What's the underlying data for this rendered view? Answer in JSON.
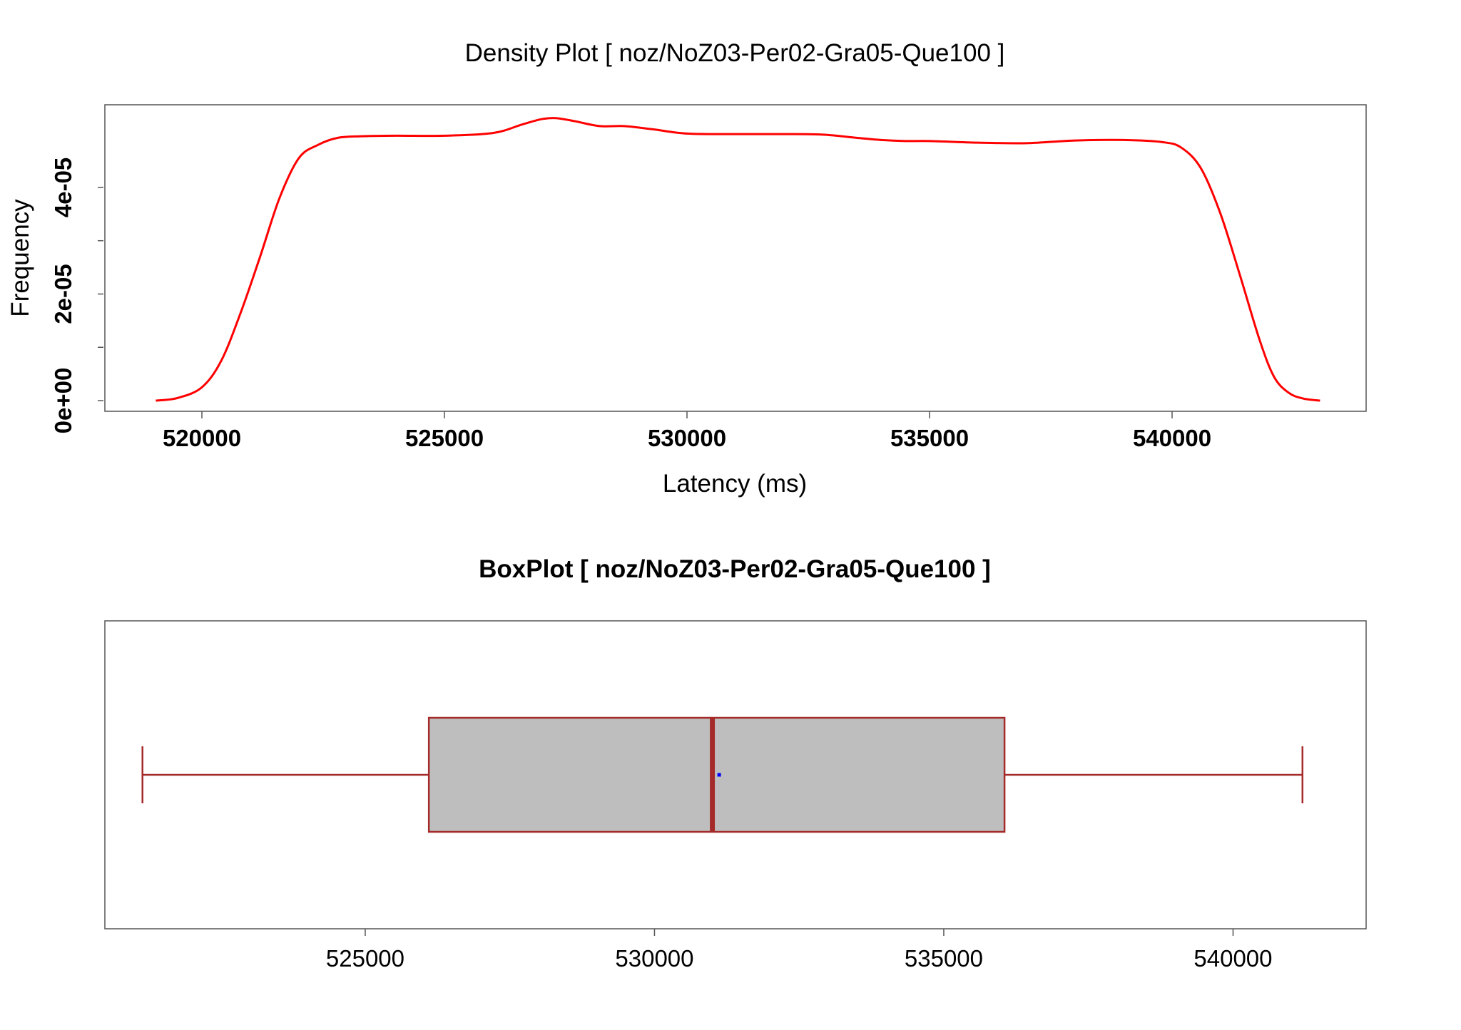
{
  "colors": {
    "density_line": "#ff0000",
    "box_stroke": "#a52a2a",
    "box_fill": "#bebebe",
    "mean_point": "#0000ff",
    "frame": "#555555"
  },
  "chart_data": [
    {
      "type": "line",
      "title": "Density Plot [ noz/NoZ03-Per02-Gra05-Que100 ]",
      "xlabel": "Latency (ms)",
      "ylabel": "Frequency",
      "xlim": [
        518000,
        544000
      ],
      "ylim": [
        -2e-06,
        5.55e-05
      ],
      "x_ticks": [
        520000,
        525000,
        530000,
        535000,
        540000
      ],
      "x_tick_labels": [
        "520000",
        "525000",
        "530000",
        "535000",
        "540000"
      ],
      "y_ticks": [
        0,
        2e-05,
        4e-05
      ],
      "y_tick_labels": [
        "0e+00",
        "2e-05",
        "4e-05"
      ],
      "y_minor_ticks": [
        1e-05,
        3e-05
      ],
      "grid": false,
      "series": [
        {
          "x": [
            519050,
            519500,
            520000,
            520400,
            520800,
            521200,
            521600,
            522000,
            522400,
            522800,
            523300,
            524000,
            525000,
            526000,
            526600,
            527000,
            527300,
            527700,
            528200,
            528700,
            529300,
            530000,
            531000,
            532000,
            532800,
            533500,
            534000,
            534500,
            535000,
            536000,
            537000,
            538000,
            539000,
            539800,
            540200,
            540600,
            541000,
            541400,
            541800,
            542100,
            542400,
            542700,
            543050
          ],
          "y": [
            0,
            5e-07,
            2.5e-06,
            7.5e-06,
            1.65e-05,
            2.7e-05,
            3.8e-05,
            4.55e-05,
            4.8e-05,
            4.93e-05,
            4.96e-05,
            4.97e-05,
            4.97e-05,
            5.02e-05,
            5.18e-05,
            5.28e-05,
            5.3e-05,
            5.24e-05,
            5.15e-05,
            5.15e-05,
            5.09e-05,
            5.01e-05,
            5e-05,
            5e-05,
            4.99e-05,
            4.93e-05,
            4.89e-05,
            4.87e-05,
            4.87e-05,
            4.84e-05,
            4.83e-05,
            4.88e-05,
            4.89e-05,
            4.85e-05,
            4.74e-05,
            4.35e-05,
            3.5e-05,
            2.35e-05,
            1.15e-05,
            4.5e-06,
            1.5e-06,
            4e-07,
            0
          ]
        }
      ]
    },
    {
      "type": "box",
      "title": "BoxPlot [ noz/NoZ03-Per02-Gra05-Que100 ]",
      "xlim": [
        520500,
        542300
      ],
      "x_ticks": [
        525000,
        530000,
        535000,
        540000
      ],
      "x_tick_labels": [
        "525000",
        "530000",
        "535000",
        "540000"
      ],
      "whisker_low": 521150,
      "q1": 526100,
      "median": 531000,
      "mean": 531050,
      "q3": 536050,
      "whisker_high": 541200
    }
  ]
}
